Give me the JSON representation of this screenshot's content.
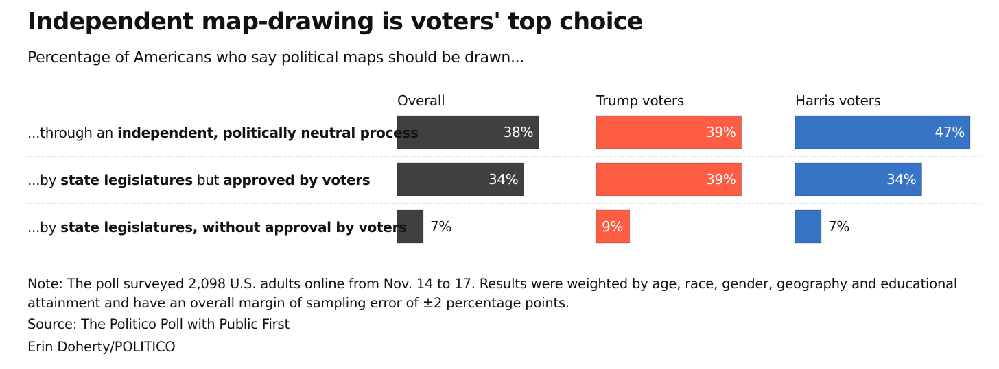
{
  "header": {
    "title": "Independent map-drawing is voters' top choice",
    "subtitle": "Percentage of Americans who say political maps should be drawn..."
  },
  "chart_data": {
    "type": "bar",
    "orientation": "horizontal",
    "title": "Independent map-drawing is voters' top choice",
    "subtitle": "Percentage of Americans who say political maps should be drawn...",
    "categories": [
      {
        "plain": "...through an ",
        "bold": "independent, politically neutral process",
        "rest": "",
        "bold2": ""
      },
      {
        "plain": "...by ",
        "bold": "state legislatures",
        "rest": " but ",
        "bold2": "approved by voters"
      },
      {
        "plain": "...by ",
        "bold": "state legislatures, without approval by voters",
        "rest": "",
        "bold2": ""
      }
    ],
    "series": [
      {
        "name": "Overall",
        "color": "#404040",
        "values": [
          38,
          34,
          7
        ]
      },
      {
        "name": "Trump voters",
        "color": "#fe5d45",
        "values": [
          39,
          39,
          9
        ]
      },
      {
        "name": "Harris voters",
        "color": "#3874c5",
        "values": [
          47,
          34,
          7
        ]
      }
    ],
    "value_suffix": "%",
    "xlim": [
      0,
      47
    ]
  },
  "footer": {
    "note": "Note: The poll surveyed 2,098 U.S. adults online from Nov. 14 to 17. Results were weighted by age, race, gender, geography and educational attainment and have an overall margin of sampling error of ±2 percentage points.",
    "source": "Source: The Politico Poll with Public First",
    "credit": "Erin Doherty/POLITICO"
  }
}
